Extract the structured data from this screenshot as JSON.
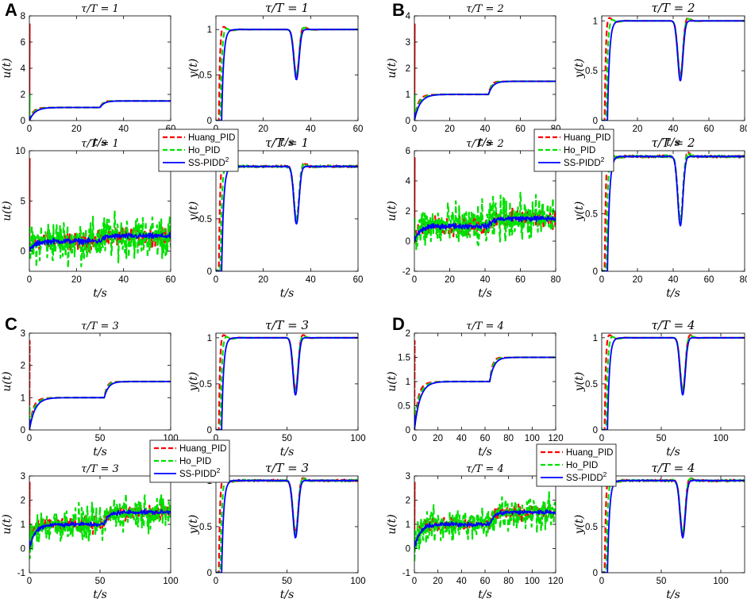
{
  "panel_labels": [
    "A",
    "B",
    "C",
    "D"
  ],
  "legend": [
    {
      "label": "Huang_PID",
      "color": "#ff0000",
      "style": "dash"
    },
    {
      "label": "Ho_PID",
      "color": "#00e000",
      "style": "dash"
    },
    {
      "label": "SS-PIDD",
      "sup": "2",
      "color": "#0000ff",
      "style": "solid"
    }
  ],
  "axis_labels": {
    "x": "t/s",
    "u": "u(t)",
    "y": "y(t)"
  },
  "colors": {
    "huang": "#ff0000",
    "ho": "#00e000",
    "ss": "#0000ff"
  },
  "chart_data": [
    {
      "panel": "A",
      "kind": "u",
      "noise": false,
      "title": "τ/T = 1",
      "type": "line",
      "xlim": [
        0,
        60
      ],
      "ylim": [
        0,
        8
      ],
      "xticks": [
        0,
        20,
        40,
        60
      ],
      "yticks": [
        0,
        2,
        4,
        6,
        8
      ],
      "disturbance_time": 30,
      "setpoint_change": [
        1,
        1.5
      ],
      "series": [
        "Huang_PID",
        "Ho_PID",
        "SS-PIDD2"
      ]
    },
    {
      "panel": "A",
      "kind": "y",
      "noise": false,
      "title": "τ/T = 1",
      "type": "line",
      "xlim": [
        0,
        60
      ],
      "ylim": [
        0,
        1.15
      ],
      "xticks": [
        0,
        20,
        40,
        60
      ],
      "yticks": [
        0,
        0.5,
        1
      ],
      "dip_time": 34,
      "dip_min": 0.45
    },
    {
      "panel": "A",
      "kind": "u",
      "noise": true,
      "title": "τ/T = 1",
      "type": "line",
      "xlim": [
        0,
        60
      ],
      "ylim": [
        -2,
        10
      ],
      "xticks": [
        0,
        20,
        40,
        60
      ],
      "yticks": [
        0,
        5,
        10
      ]
    },
    {
      "panel": "A",
      "kind": "y",
      "noise": true,
      "title": "τ/T = 1",
      "type": "line",
      "xlim": [
        0,
        60
      ],
      "ylim": [
        0,
        1.15
      ],
      "xticks": [
        0,
        20,
        40,
        60
      ],
      "yticks": [
        0,
        0.5,
        1
      ],
      "dip_time": 34,
      "dip_min": 0.45
    },
    {
      "panel": "B",
      "kind": "u",
      "noise": false,
      "title": "τ/T = 2",
      "type": "line",
      "xlim": [
        0,
        80
      ],
      "ylim": [
        0,
        4
      ],
      "xticks": [
        0,
        20,
        40,
        60,
        80
      ],
      "yticks": [
        0,
        1,
        2,
        3,
        4
      ],
      "disturbance_time": 42
    },
    {
      "panel": "B",
      "kind": "y",
      "noise": false,
      "title": "τ/T = 2",
      "type": "line",
      "xlim": [
        0,
        80
      ],
      "ylim": [
        0,
        1.05
      ],
      "xticks": [
        0,
        20,
        40,
        60,
        80
      ],
      "yticks": [
        0,
        0.5,
        1
      ],
      "dip_time": 44,
      "dip_min": 0.4
    },
    {
      "panel": "B",
      "kind": "u",
      "noise": true,
      "title": "τ/T = 2",
      "type": "line",
      "xlim": [
        0,
        80
      ],
      "ylim": [
        -2,
        6
      ],
      "xticks": [
        0,
        20,
        40,
        60,
        80
      ],
      "yticks": [
        -2,
        0,
        2,
        4,
        6
      ]
    },
    {
      "panel": "B",
      "kind": "y",
      "noise": true,
      "title": "τ/T = 2",
      "type": "line",
      "xlim": [
        0,
        80
      ],
      "ylim": [
        0,
        1.05
      ],
      "xticks": [
        0,
        20,
        40,
        60,
        80
      ],
      "yticks": [
        0,
        0.5,
        1
      ],
      "dip_time": 44,
      "dip_min": 0.4
    },
    {
      "panel": "C",
      "kind": "u",
      "noise": false,
      "title": "τ/T = 3",
      "type": "line",
      "xlim": [
        0,
        100
      ],
      "ylim": [
        0,
        3
      ],
      "xticks": [
        0,
        50,
        100
      ],
      "yticks": [
        0,
        1,
        2,
        3
      ],
      "disturbance_time": 53
    },
    {
      "panel": "C",
      "kind": "y",
      "noise": false,
      "title": "τ/T = 3",
      "type": "line",
      "xlim": [
        0,
        100
      ],
      "ylim": [
        0,
        1.05
      ],
      "xticks": [
        0,
        50,
        100
      ],
      "yticks": [
        0,
        0.5,
        1
      ],
      "dip_time": 56,
      "dip_min": 0.38
    },
    {
      "panel": "C",
      "kind": "u",
      "noise": true,
      "title": "τ/T = 3",
      "type": "line",
      "xlim": [
        0,
        100
      ],
      "ylim": [
        -1,
        3
      ],
      "xticks": [
        0,
        50,
        100
      ],
      "yticks": [
        -1,
        0,
        1,
        2,
        3
      ]
    },
    {
      "panel": "C",
      "kind": "y",
      "noise": true,
      "title": "τ/T = 3",
      "type": "line",
      "xlim": [
        0,
        100
      ],
      "ylim": [
        0,
        1.05
      ],
      "xticks": [
        0,
        50,
        100
      ],
      "yticks": [
        0,
        0.5,
        1
      ],
      "dip_time": 56,
      "dip_min": 0.38
    },
    {
      "panel": "D",
      "kind": "u",
      "noise": false,
      "title": "τ/T = 4",
      "type": "line",
      "xlim": [
        0,
        120
      ],
      "ylim": [
        0,
        2
      ],
      "xticks": [
        0,
        20,
        40,
        60,
        80,
        100,
        120
      ],
      "yticks": [
        0,
        0.5,
        1,
        1.5,
        2
      ],
      "disturbance_time": 64
    },
    {
      "panel": "D",
      "kind": "y",
      "noise": false,
      "title": "τ/T = 4",
      "type": "line",
      "xlim": [
        0,
        120
      ],
      "ylim": [
        0,
        1.05
      ],
      "xticks": [
        0,
        50,
        100
      ],
      "yticks": [
        0,
        0.5,
        1
      ],
      "dip_time": 68,
      "dip_min": 0.38
    },
    {
      "panel": "D",
      "kind": "u",
      "noise": true,
      "title": "τ/T = 4",
      "type": "line",
      "xlim": [
        0,
        120
      ],
      "ylim": [
        -1,
        3
      ],
      "xticks": [
        0,
        20,
        40,
        60,
        80,
        100,
        120
      ],
      "yticks": [
        -1,
        0,
        1,
        2,
        3
      ]
    },
    {
      "panel": "D",
      "kind": "y",
      "noise": true,
      "title": "τ/T = 4",
      "type": "line",
      "xlim": [
        0,
        120
      ],
      "ylim": [
        0,
        1.05
      ],
      "xticks": [
        0,
        50,
        100
      ],
      "yticks": [
        0,
        0.5,
        1
      ],
      "dip_time": 68,
      "dip_min": 0.38
    }
  ]
}
